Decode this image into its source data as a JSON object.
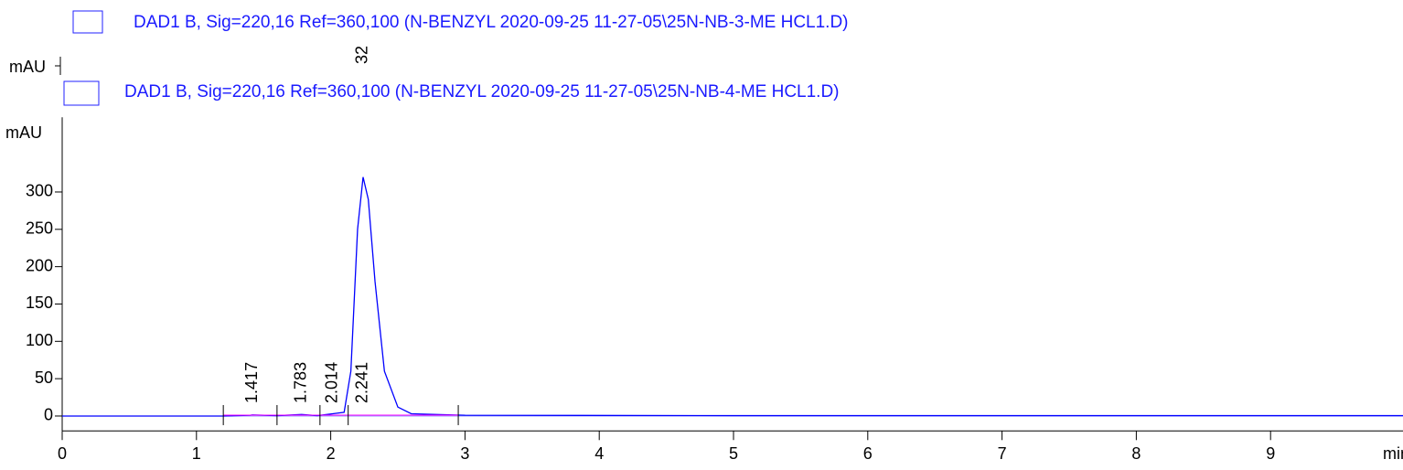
{
  "chart_data": {
    "type": "line",
    "x_label": "min",
    "y_label": "mAU",
    "top_y_label": "mAU",
    "top_peak_label": "32",
    "series": [
      {
        "name": "DAD1 B, Sig=220,16 Ref=360,100 (N-BENZYL 2020-09-25 11-27-05\\25N-NB-3-ME HCL1.D)",
        "color": "#0000ff"
      },
      {
        "name": "DAD1 B, Sig=220,16 Ref=360,100 (N-BENZYL 2020-09-25 11-27-05\\25N-NB-4-ME HCL1.D)",
        "color": "#0000ff",
        "x": [
          0,
          1.2,
          1.4,
          1.417,
          1.6,
          1.783,
          1.9,
          2.014,
          2.1,
          2.15,
          2.2,
          2.241,
          2.28,
          2.33,
          2.4,
          2.5,
          2.6,
          3,
          5,
          10
        ],
        "values": [
          0,
          0,
          1,
          1.5,
          0.5,
          2,
          0.5,
          3,
          5,
          60,
          250,
          320,
          290,
          180,
          60,
          12,
          3,
          1,
          0.5,
          0.5
        ]
      }
    ],
    "peak_labels": [
      1.417,
      1.783,
      2.014,
      2.241
    ],
    "baseline_marks": [
      1.2,
      1.6,
      1.92,
      2.13,
      2.95
    ],
    "baseline_color": "#ff00ff",
    "xlim": [
      0,
      10
    ],
    "ylim": [
      -20,
      400
    ],
    "xticks": [
      0,
      1,
      2,
      3,
      4,
      5,
      6,
      7,
      8,
      9
    ],
    "yticks": [
      0,
      50,
      100,
      150,
      200,
      250,
      300
    ]
  }
}
